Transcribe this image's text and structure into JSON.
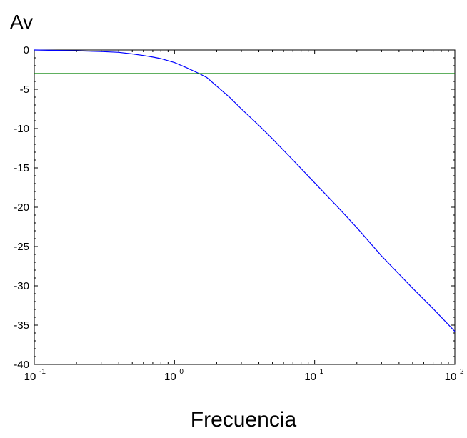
{
  "chart_data": {
    "type": "line",
    "title": "",
    "ylabel": "Av",
    "xlabel": "Frecuencia",
    "x_scale": "log",
    "xlim": [
      0.1,
      100
    ],
    "ylim": [
      -40,
      0
    ],
    "grid": false,
    "x_ticks": [
      {
        "value": 0.1,
        "base": "10",
        "exponent": "-1"
      },
      {
        "value": 1,
        "base": "10",
        "exponent": "0"
      },
      {
        "value": 10,
        "base": "10",
        "exponent": "1"
      },
      {
        "value": 100,
        "base": "10",
        "exponent": "2"
      }
    ],
    "y_ticks": [
      {
        "value": 0,
        "label": "0"
      },
      {
        "value": -5,
        "label": "-5"
      },
      {
        "value": -10,
        "label": "-10"
      },
      {
        "value": -15,
        "label": "-15"
      },
      {
        "value": -20,
        "label": "-20"
      },
      {
        "value": -25,
        "label": "-25"
      },
      {
        "value": -30,
        "label": "-30"
      },
      {
        "value": -35,
        "label": "-35"
      },
      {
        "value": -40,
        "label": "-40"
      }
    ],
    "series": [
      {
        "color": "#0000ff",
        "x": [
          0.1,
          0.2,
          0.3,
          0.4,
          0.5,
          0.6,
          0.7,
          0.8,
          1,
          1.2,
          1.5,
          1.7,
          2,
          2.5,
          3,
          4,
          5,
          7,
          10,
          15,
          20,
          30,
          50,
          70,
          100
        ],
        "y": [
          0,
          -0.1,
          -0.2,
          -0.3,
          -0.5,
          -0.7,
          -0.9,
          -1.1,
          -1.6,
          -2.2,
          -3.0,
          -3.5,
          -4.6,
          -6.1,
          -7.5,
          -9.6,
          -11.3,
          -14.0,
          -16.9,
          -20.2,
          -22.6,
          -26.2,
          -30.3,
          -32.9,
          -35.8
        ]
      },
      {
        "color": "#008000",
        "x": [
          0.1,
          100
        ],
        "y": [
          -3,
          -3
        ]
      }
    ]
  }
}
